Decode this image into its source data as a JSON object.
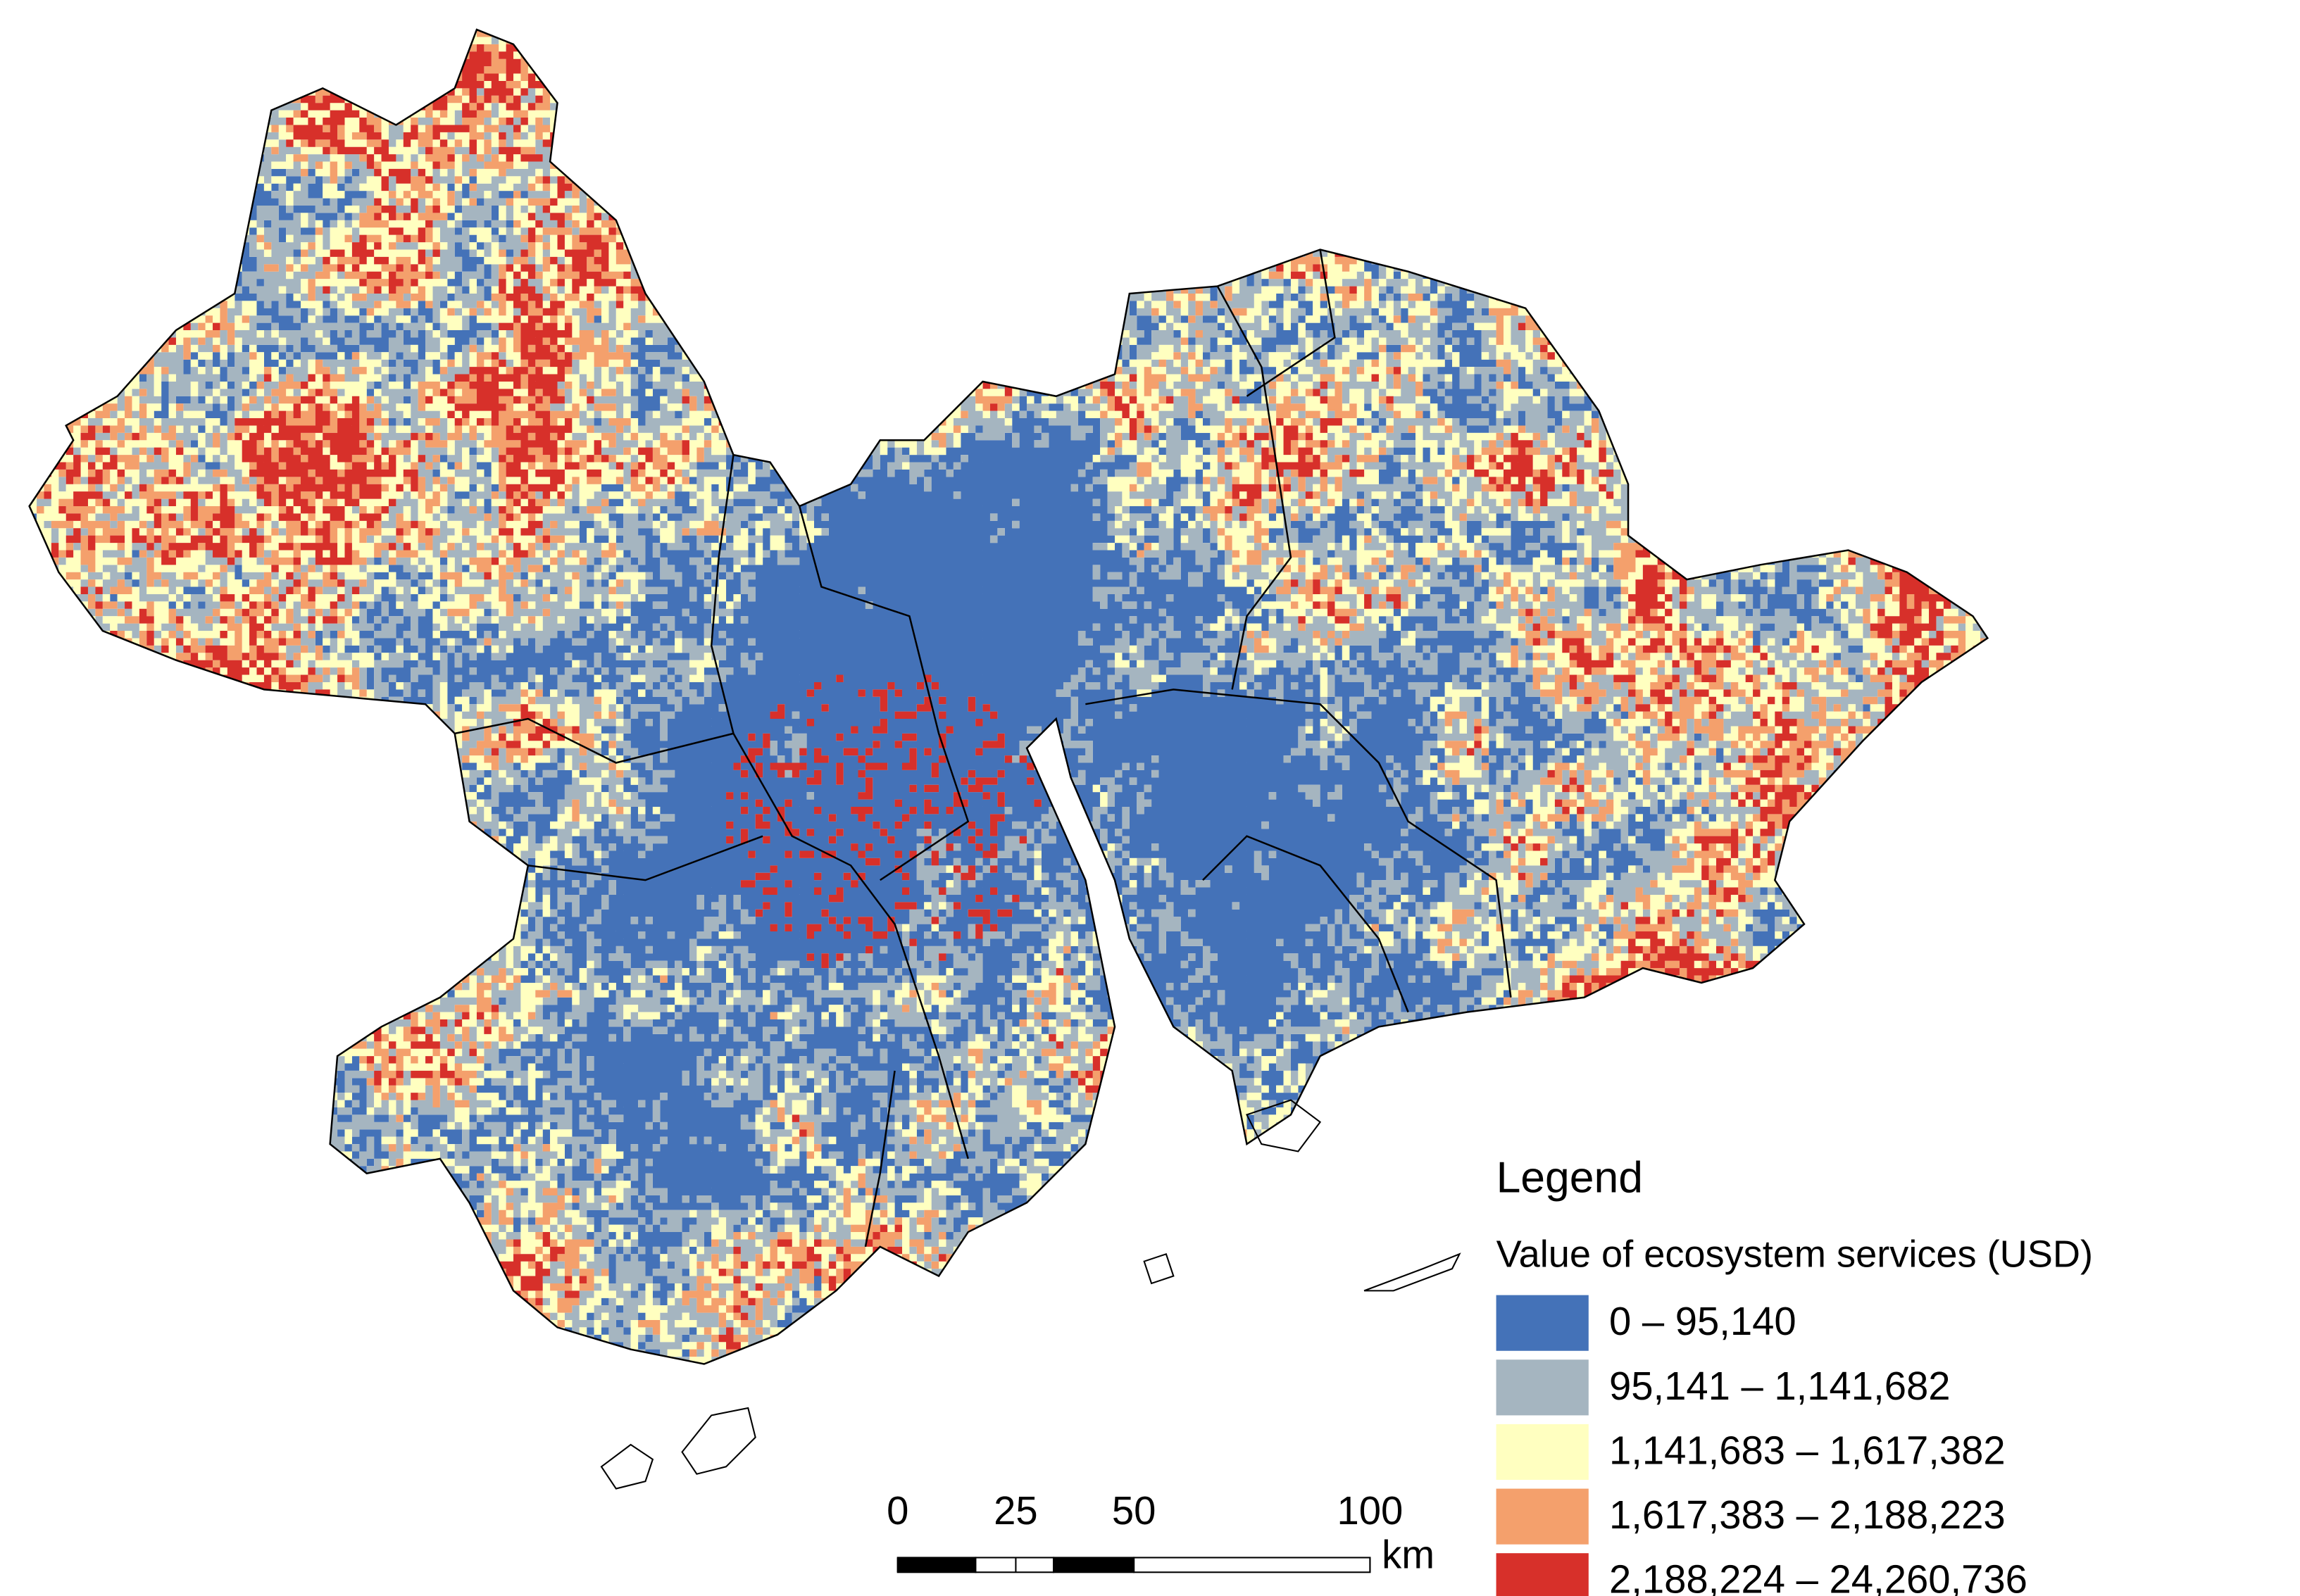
{
  "legend": {
    "title": "Legend",
    "subtitle": "Value of ecosystem services (USD)",
    "classes": [
      {
        "label": "0 – 95,140",
        "color": "#4472b8"
      },
      {
        "label": "95,141 – 1,141,682",
        "color": "#a5b5c0"
      },
      {
        "label": "1,141,683 – 1,617,382",
        "color": "#ffffc0"
      },
      {
        "label": "1,617,383 – 2,188,223",
        "color": "#f4a06c"
      },
      {
        "label": "2,188,224 – 24,260,736",
        "color": "#d7302a"
      }
    ]
  },
  "scale_bar": {
    "ticks": [
      0,
      25,
      50,
      100
    ],
    "unit": "km"
  }
}
